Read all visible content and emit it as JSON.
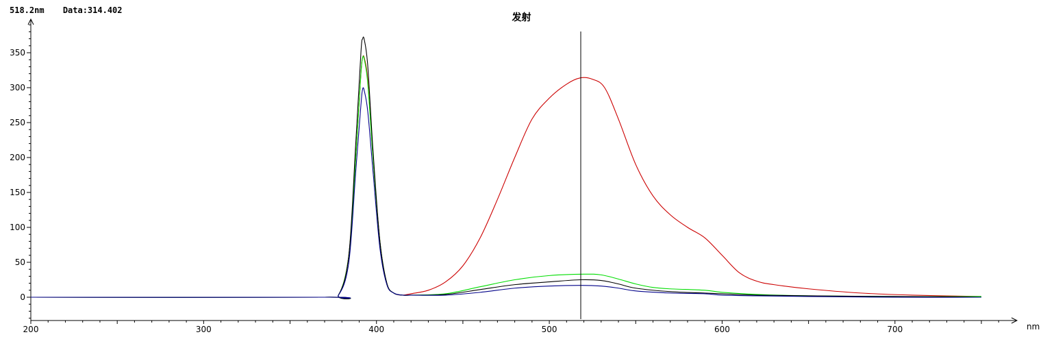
{
  "readout": {
    "wavelength": "518.2nm",
    "data": "Data:314.402"
  },
  "chart_data": {
    "type": "line",
    "title": "发射",
    "xlabel": "nm",
    "ylabel": "",
    "xlim": [
      200,
      750
    ],
    "ylim": [
      -35,
      400
    ],
    "xticks": [
      200,
      300,
      400,
      500,
      600,
      700
    ],
    "yticks": [
      0,
      50,
      100,
      150,
      200,
      250,
      300,
      350
    ],
    "grid": false,
    "legend": "none",
    "cursor_x": 518.2,
    "series": [
      {
        "color": "#cc0000",
        "points": [
          [
            200,
            0
          ],
          [
            370,
            0
          ],
          [
            378,
            3
          ],
          [
            384,
            60
          ],
          [
            388,
            200
          ],
          [
            391,
            320
          ],
          [
            392,
            343
          ],
          [
            393,
            342
          ],
          [
            395,
            310
          ],
          [
            398,
            200
          ],
          [
            402,
            80
          ],
          [
            406,
            20
          ],
          [
            410,
            6
          ],
          [
            415,
            3
          ],
          [
            420,
            5
          ],
          [
            430,
            10
          ],
          [
            440,
            22
          ],
          [
            450,
            45
          ],
          [
            460,
            85
          ],
          [
            470,
            140
          ],
          [
            480,
            200
          ],
          [
            490,
            255
          ],
          [
            500,
            285
          ],
          [
            510,
            305
          ],
          [
            518,
            314
          ],
          [
            525,
            312
          ],
          [
            532,
            300
          ],
          [
            540,
            255
          ],
          [
            550,
            190
          ],
          [
            560,
            145
          ],
          [
            570,
            118
          ],
          [
            580,
            100
          ],
          [
            590,
            85
          ],
          [
            600,
            60
          ],
          [
            610,
            35
          ],
          [
            620,
            23
          ],
          [
            630,
            18
          ],
          [
            650,
            12
          ],
          [
            680,
            6
          ],
          [
            710,
            3
          ],
          [
            750,
            1
          ]
        ]
      },
      {
        "color": "#00dd00",
        "points": [
          [
            200,
            0
          ],
          [
            370,
            0
          ],
          [
            378,
            3
          ],
          [
            384,
            60
          ],
          [
            388,
            200
          ],
          [
            391,
            320
          ],
          [
            392,
            343
          ],
          [
            393,
            340
          ],
          [
            395,
            305
          ],
          [
            398,
            200
          ],
          [
            402,
            80
          ],
          [
            406,
            20
          ],
          [
            410,
            6
          ],
          [
            415,
            3
          ],
          [
            420,
            3
          ],
          [
            440,
            5
          ],
          [
            460,
            15
          ],
          [
            480,
            25
          ],
          [
            500,
            31
          ],
          [
            520,
            33
          ],
          [
            530,
            32
          ],
          [
            540,
            26
          ],
          [
            550,
            19
          ],
          [
            560,
            14
          ],
          [
            570,
            12
          ],
          [
            590,
            10
          ],
          [
            600,
            7
          ],
          [
            620,
            4
          ],
          [
            650,
            2
          ],
          [
            700,
            1
          ],
          [
            750,
            1
          ]
        ]
      },
      {
        "color": "#000000",
        "points": [
          [
            200,
            0
          ],
          [
            370,
            0
          ],
          [
            378,
            3
          ],
          [
            384,
            60
          ],
          [
            388,
            220
          ],
          [
            391,
            350
          ],
          [
            392,
            370
          ],
          [
            393,
            368
          ],
          [
            395,
            330
          ],
          [
            398,
            210
          ],
          [
            402,
            80
          ],
          [
            406,
            20
          ],
          [
            410,
            6
          ],
          [
            415,
            3
          ],
          [
            420,
            3
          ],
          [
            440,
            4
          ],
          [
            460,
            11
          ],
          [
            480,
            18
          ],
          [
            500,
            22
          ],
          [
            518,
            25
          ],
          [
            530,
            24
          ],
          [
            540,
            19
          ],
          [
            550,
            13
          ],
          [
            570,
            8
          ],
          [
            590,
            6
          ],
          [
            600,
            5
          ],
          [
            620,
            3
          ],
          [
            650,
            2
          ],
          [
            700,
            1
          ],
          [
            750,
            0
          ]
        ]
      },
      {
        "color": "#000088",
        "points": [
          [
            200,
            0
          ],
          [
            370,
            0
          ],
          [
            378,
            3
          ],
          [
            384,
            50
          ],
          [
            388,
            180
          ],
          [
            391,
            275
          ],
          [
            392,
            298
          ],
          [
            393,
            295
          ],
          [
            395,
            265
          ],
          [
            398,
            180
          ],
          [
            402,
            70
          ],
          [
            406,
            18
          ],
          [
            410,
            6
          ],
          [
            415,
            3
          ],
          [
            420,
            3
          ],
          [
            440,
            3
          ],
          [
            460,
            7
          ],
          [
            480,
            13
          ],
          [
            500,
            16
          ],
          [
            518,
            17
          ],
          [
            530,
            16
          ],
          [
            540,
            13
          ],
          [
            550,
            9
          ],
          [
            570,
            6
          ],
          [
            590,
            5
          ],
          [
            600,
            3
          ],
          [
            620,
            2
          ],
          [
            650,
            1
          ],
          [
            700,
            0
          ],
          [
            750,
            0
          ]
        ]
      }
    ]
  }
}
